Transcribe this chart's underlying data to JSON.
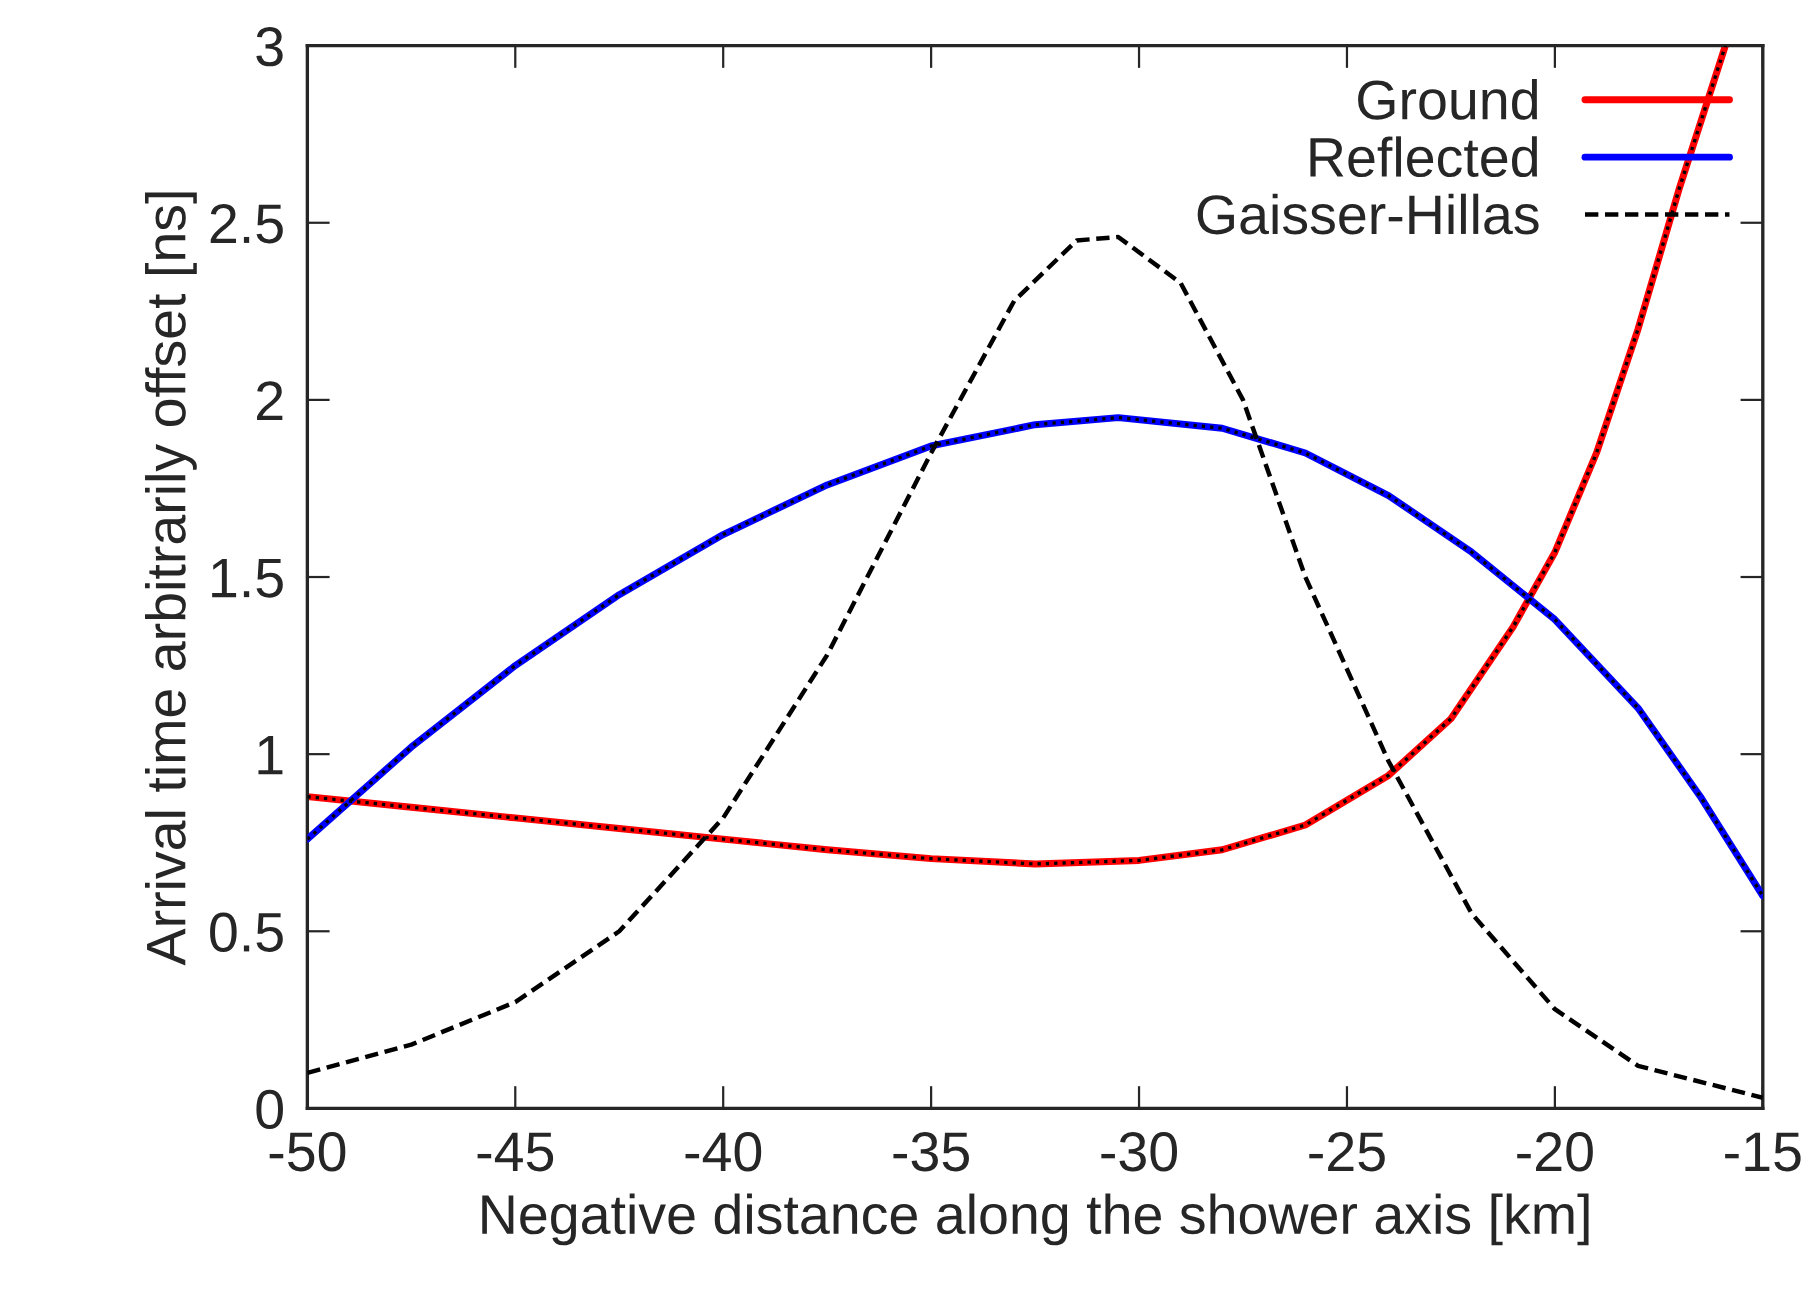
{
  "chart_data": {
    "type": "line",
    "xlabel": "Negative distance along the shower axis [km]",
    "ylabel": "Arrival time arbitrarily offset [ns]",
    "xlim": [
      -50,
      -15
    ],
    "xticks": [
      -50,
      -45,
      -40,
      -35,
      -30,
      -25,
      -20,
      -15
    ],
    "ylim": [
      0,
      3
    ],
    "yticks": [
      0,
      0.5,
      1,
      1.5,
      2,
      2.5,
      3
    ],
    "grid": false,
    "legend": "top right",
    "series": [
      {
        "name": "Ground",
        "color": "#ff0000",
        "line_style": "solid",
        "x": [
          -50,
          -47.5,
          -45,
          -42.5,
          -40,
          -37.5,
          -35,
          -32.5,
          -30,
          -28,
          -26,
          -24,
          -22.5,
          -21,
          -20,
          -19,
          -18,
          -17,
          -15.9
        ],
        "values": [
          0.88,
          0.85,
          0.82,
          0.79,
          0.76,
          0.73,
          0.705,
          0.69,
          0.7,
          0.73,
          0.8,
          0.94,
          1.1,
          1.36,
          1.57,
          1.85,
          2.2,
          2.6,
          3.0
        ]
      },
      {
        "name": "Reflected",
        "color": "#0000ff",
        "line_style": "solid",
        "x": [
          -50,
          -47.5,
          -45,
          -42.5,
          -40,
          -37.5,
          -35,
          -32.5,
          -30.5,
          -28,
          -26,
          -24,
          -22,
          -20,
          -18,
          -16.5,
          -15
        ],
        "values": [
          0.76,
          1.02,
          1.25,
          1.45,
          1.62,
          1.76,
          1.87,
          1.93,
          1.95,
          1.92,
          1.85,
          1.73,
          1.57,
          1.38,
          1.13,
          0.88,
          0.6
        ]
      },
      {
        "name": "Gaisser-Hillas",
        "color": "#000000",
        "line_style": "dashed",
        "x": [
          -50,
          -47.5,
          -45,
          -42.5,
          -40,
          -37.5,
          -35,
          -33,
          -31.5,
          -30.5,
          -29,
          -27.5,
          -26,
          -24,
          -22,
          -20,
          -18,
          -15
        ],
        "values": [
          0.1,
          0.18,
          0.3,
          0.5,
          0.82,
          1.28,
          1.85,
          2.28,
          2.45,
          2.46,
          2.33,
          2.0,
          1.5,
          0.98,
          0.55,
          0.28,
          0.12,
          0.03
        ]
      },
      {
        "color": "#000000",
        "line_style": "dotted",
        "x": [
          -50,
          -47.5,
          -45,
          -42.5,
          -40,
          -37.5,
          -35,
          -32.5,
          -30,
          -28,
          -26,
          -24,
          -22.5,
          -21,
          -20,
          -19,
          -18,
          -17,
          -15.9
        ],
        "values": [
          0.88,
          0.85,
          0.82,
          0.79,
          0.76,
          0.73,
          0.705,
          0.69,
          0.7,
          0.73,
          0.8,
          0.94,
          1.1,
          1.36,
          1.57,
          1.85,
          2.2,
          2.6,
          3.0
        ]
      },
      {
        "color": "#000000",
        "line_style": "dotted",
        "x": [
          -50,
          -47.5,
          -45,
          -42.5,
          -40,
          -37.5,
          -35,
          -32.5,
          -30.5,
          -28,
          -26,
          -24,
          -22,
          -20,
          -18,
          -16.5,
          -15
        ],
        "values": [
          0.76,
          1.02,
          1.25,
          1.45,
          1.62,
          1.76,
          1.87,
          1.93,
          1.95,
          1.92,
          1.85,
          1.73,
          1.57,
          1.38,
          1.13,
          0.88,
          0.6
        ]
      }
    ]
  }
}
